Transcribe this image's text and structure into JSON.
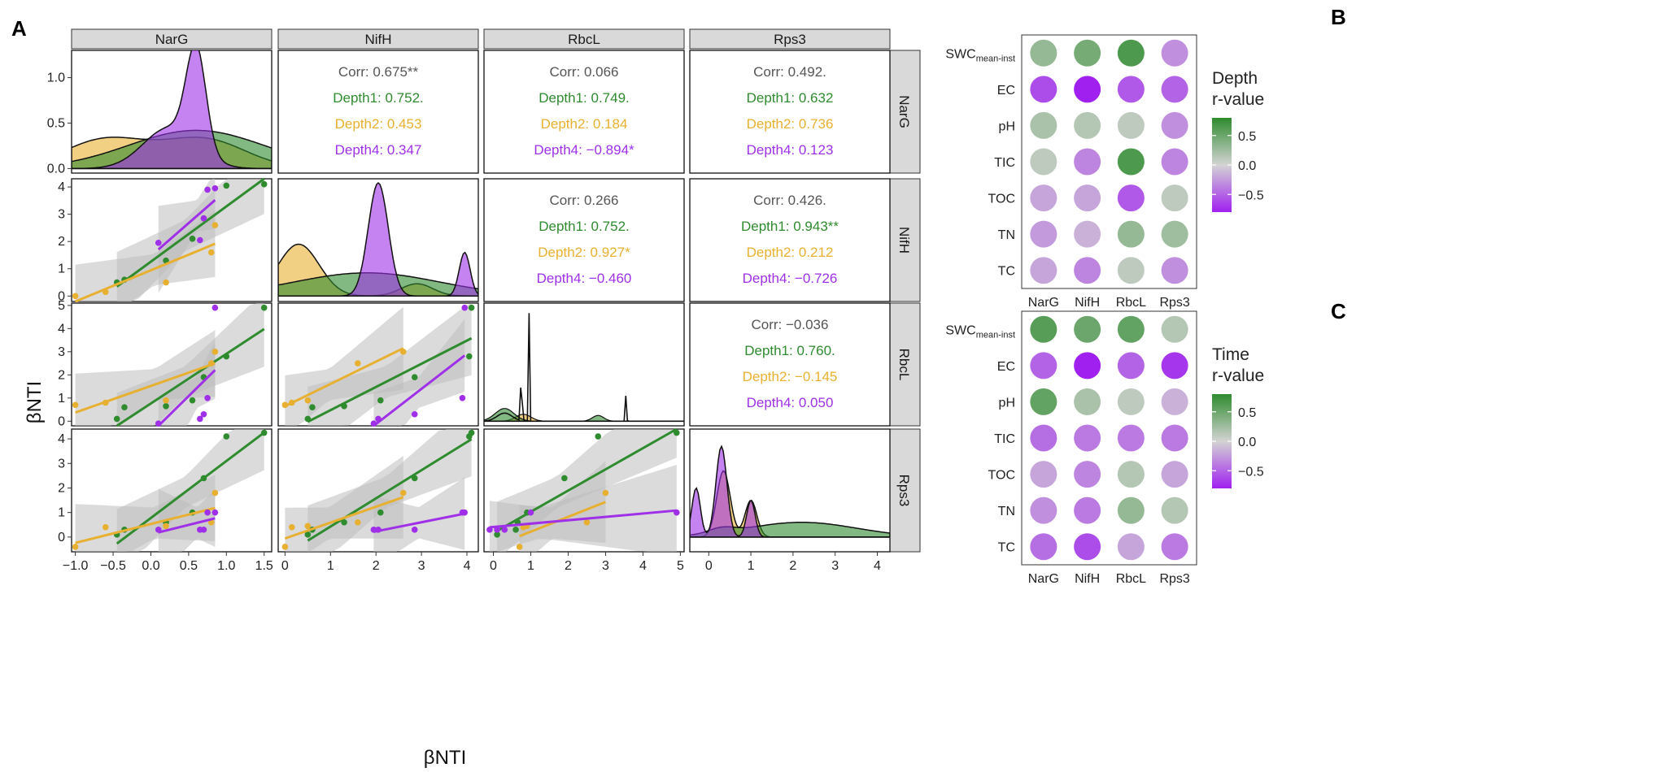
{
  "panel_labels": {
    "a": "A",
    "b": "B",
    "c": "C"
  },
  "colors": {
    "depth1": "#2e8b2e",
    "depth2": "#e8b030",
    "depth4": "#9f30e8",
    "corr": "#555555",
    "ribbon": "#bdbdbd",
    "strip": "#d9d9d9",
    "pos": "#2e8b2e",
    "mid": "#d3d3d3",
    "neg": "#a020f0"
  },
  "chart_data": [
    {
      "id": "A",
      "type": "scatter-matrix",
      "genes": [
        "NarG",
        "NifH",
        "RbcL",
        "Rps3"
      ],
      "xlabel": "βNTI",
      "ylabel": "βNTI",
      "groups": [
        "Depth1",
        "Depth2",
        "Depth4"
      ],
      "x_ticks": {
        "NarG": [
          -1.0,
          -0.5,
          0.0,
          0.5,
          1.0,
          1.5
        ],
        "NifH": [
          0,
          1,
          2,
          3,
          4
        ],
        "RbcL": [
          0,
          1,
          2,
          3,
          4,
          5
        ],
        "Rps3": [
          0,
          1,
          2,
          3,
          4
        ]
      },
      "x_tick_labels": {
        "NarG": [
          "−1.0",
          "−0.5",
          "0.0",
          "0.5",
          "1.0",
          "1.5"
        ],
        "NifH": [
          "0",
          "1",
          "2",
          "3",
          "4"
        ],
        "RbcL": [
          "0",
          "1",
          "2",
          "3",
          "4",
          "5"
        ],
        "Rps3": [
          "0",
          "1",
          "2",
          "3",
          "4"
        ]
      },
      "x_ranges": {
        "NarG": [
          -1.05,
          1.6
        ],
        "NifH": [
          -0.15,
          4.25
        ],
        "RbcL": [
          -0.25,
          5.1
        ],
        "Rps3": [
          -0.45,
          4.3
        ]
      },
      "y_ranges": {
        "NarG": [
          -0.05,
          1.3
        ],
        "NifH": [
          -0.2,
          4.3
        ],
        "RbcL": [
          -0.2,
          5.1
        ],
        "Rps3": [
          -0.6,
          4.4
        ]
      },
      "y_ticks": {
        "NarG": [
          0.0,
          0.5,
          1.0
        ],
        "NifH": [
          0,
          1,
          2,
          3,
          4
        ],
        "RbcL": [
          0,
          1,
          2,
          3,
          4,
          5
        ],
        "Rps3": [
          0,
          1,
          2,
          3,
          4
        ]
      },
      "y_tick_labels": {
        "NarG": [
          "0.0",
          "0.5",
          "1.0"
        ],
        "NifH": [
          "0",
          "1",
          "2",
          "3",
          "4"
        ],
        "RbcL": [
          "0",
          "1",
          "2",
          "3",
          "4",
          "5"
        ],
        "Rps3": [
          "0",
          "1",
          "2",
          "3",
          "4"
        ]
      },
      "data": {
        "NarG": {
          "Depth1": [
            -0.45,
            -0.35,
            0.2,
            0.55,
            0.7,
            1.0,
            1.5
          ],
          "Depth2": [
            -1.0,
            -0.6,
            0.2,
            0.8,
            0.85
          ],
          "Depth4": [
            0.1,
            0.65,
            0.7,
            0.75,
            0.85
          ]
        },
        "NifH": {
          "Depth1": [
            0.5,
            0.6,
            1.3,
            2.1,
            2.85,
            4.05,
            4.1
          ],
          "Depth2": [
            0.0,
            0.15,
            0.5,
            1.6,
            2.6
          ],
          "Depth4": [
            1.95,
            2.05,
            2.85,
            3.9,
            3.95
          ]
        },
        "RbcL": {
          "Depth1": [
            0.1,
            0.6,
            0.65,
            0.9,
            1.9,
            2.8,
            4.9
          ],
          "Depth2": [
            0.7,
            0.8,
            0.9,
            2.5,
            3.0
          ],
          "Depth4": [
            -0.1,
            0.1,
            0.3,
            1.0,
            4.9
          ]
        },
        "Rps3": {
          "Depth1": [
            0.1,
            0.3,
            0.6,
            1.0,
            2.4,
            4.1,
            4.25
          ],
          "Depth2": [
            -0.4,
            0.4,
            0.45,
            0.6,
            1.8
          ],
          "Depth4": [
            0.3,
            0.3,
            0.3,
            1.0,
            1.0
          ]
        }
      },
      "density_peaks": {
        "NarG": {
          "Depth4_peak": 1.2,
          "Depth2_peak": 0.45,
          "Depth1_peak": 0.45
        },
        "NifH": {
          "Depth4_peak": 4.15,
          "Depth2_peak": 2.1,
          "Depth1_peak": 0.85
        },
        "RbcL": {
          "spikes_at": [
            0.75,
            0.95,
            3.55
          ]
        },
        "Rps3": {
          "peaks_at": [
            0.3,
            1.0
          ]
        }
      },
      "correlations": [
        {
          "row": "NarG",
          "col": "NifH",
          "lines": [
            "Corr: 0.675**",
            "Depth1: 0.752.",
            "Depth2: 0.453",
            "Depth4: 0.347"
          ]
        },
        {
          "row": "NarG",
          "col": "RbcL",
          "lines": [
            "Corr: 0.066",
            "Depth1: 0.749.",
            "Depth2: 0.184",
            "Depth4: −0.894*"
          ]
        },
        {
          "row": "NarG",
          "col": "Rps3",
          "lines": [
            "Corr: 0.492.",
            "Depth1: 0.632",
            "Depth2: 0.736",
            "Depth4: 0.123"
          ]
        },
        {
          "row": "NifH",
          "col": "RbcL",
          "lines": [
            "Corr: 0.266",
            "Depth1: 0.752.",
            "Depth2: 0.927*",
            "Depth4: −0.460"
          ]
        },
        {
          "row": "NifH",
          "col": "Rps3",
          "lines": [
            "Corr: 0.426.",
            "Depth1: 0.943**",
            "Depth2: 0.212",
            "Depth4: −0.726"
          ]
        },
        {
          "row": "RbcL",
          "col": "Rps3",
          "lines": [
            "Corr: −0.036",
            "Depth1: 0.760.",
            "Depth2: −0.145",
            "Depth4: 0.050"
          ]
        }
      ]
    },
    {
      "id": "B",
      "type": "heatmap",
      "variables": [
        "SWC",
        "EC",
        "pH",
        "TIC",
        "TOC",
        "TN",
        "TC"
      ],
      "swc_subscript": "mean-inst",
      "genes": [
        "NarG",
        "NifH",
        "RbcL",
        "Rps3"
      ],
      "legend_title": [
        "Depth",
        "r-value"
      ],
      "legend_ticks": [
        "0.5",
        "0.0",
        "−0.5"
      ],
      "legend_range": [
        -0.8,
        0.8
      ],
      "values": [
        [
          0.3,
          0.45,
          0.65,
          -0.3
        ],
        [
          -0.6,
          -0.9,
          -0.55,
          -0.5
        ],
        [
          0.2,
          0.15,
          0.1,
          -0.3
        ],
        [
          0.1,
          -0.35,
          0.65,
          -0.35
        ],
        [
          -0.2,
          -0.2,
          -0.55,
          0.1
        ],
        [
          -0.25,
          -0.15,
          0.3,
          0.25
        ],
        [
          -0.2,
          -0.35,
          0.1,
          -0.3
        ]
      ]
    },
    {
      "id": "C",
      "type": "heatmap",
      "variables": [
        "SWC",
        "EC",
        "pH",
        "TIC",
        "TOC",
        "TN",
        "TC"
      ],
      "swc_subscript": "mean-inst",
      "genes": [
        "NarG",
        "NifH",
        "RbcL",
        "Rps3"
      ],
      "legend_title": [
        "Time",
        "r-value"
      ],
      "legend_ticks": [
        "0.5",
        "0.0",
        "−0.5"
      ],
      "legend_range": [
        -0.8,
        0.8
      ],
      "values": [
        [
          0.6,
          0.5,
          0.55,
          0.15
        ],
        [
          -0.5,
          -0.85,
          -0.5,
          -0.7
        ],
        [
          0.55,
          0.2,
          0.1,
          -0.15
        ],
        [
          -0.45,
          -0.4,
          -0.4,
          -0.4
        ],
        [
          -0.2,
          -0.35,
          0.15,
          -0.2
        ],
        [
          -0.3,
          -0.4,
          0.3,
          0.15
        ],
        [
          -0.45,
          -0.6,
          -0.2,
          -0.4
        ]
      ]
    }
  ]
}
